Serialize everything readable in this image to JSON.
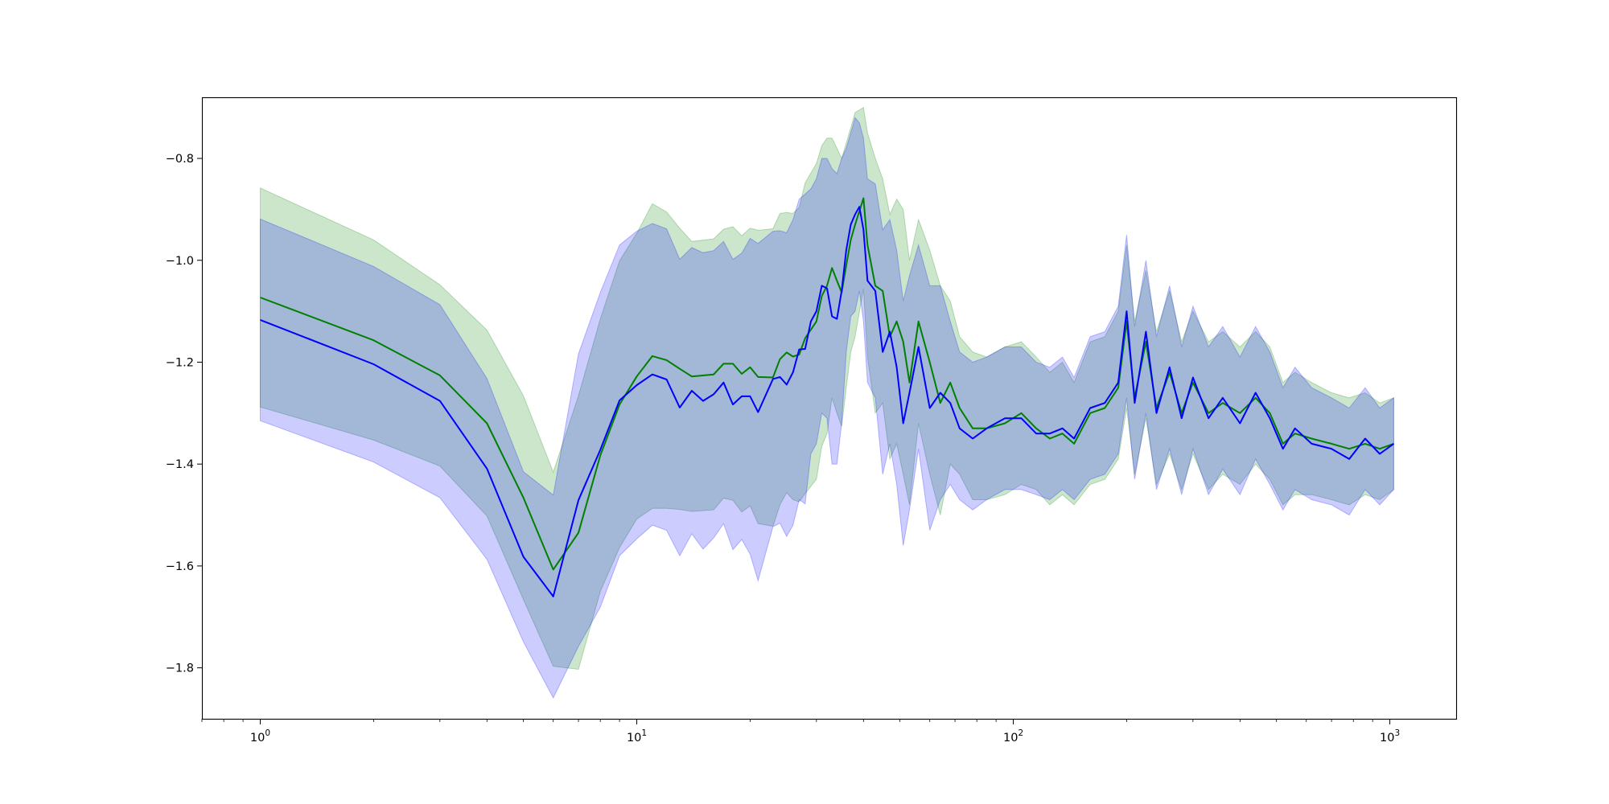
{
  "chart_data": {
    "type": "line",
    "title": "",
    "xlabel": "",
    "ylabel": "",
    "xscale": "log",
    "xlim": [
      0.7,
      1500
    ],
    "ylim": [
      -1.9,
      -0.68
    ],
    "grid": false,
    "legend": "none",
    "y_ticks": [
      {
        "value": -1.8,
        "label": "−1.8"
      },
      {
        "value": -1.6,
        "label": "−1.6"
      },
      {
        "value": -1.4,
        "label": "−1.4"
      },
      {
        "value": -1.2,
        "label": "−1.2"
      },
      {
        "value": -1.0,
        "label": "−1.0"
      },
      {
        "value": -0.8,
        "label": "−0.8"
      }
    ],
    "x_ticks": [
      {
        "value": 1,
        "base": "10",
        "exp": "0"
      },
      {
        "value": 10,
        "base": "10",
        "exp": "1"
      },
      {
        "value": 100,
        "base": "10",
        "exp": "2"
      },
      {
        "value": 1000,
        "base": "10",
        "exp": "3"
      }
    ],
    "series": [
      {
        "color": "#008000",
        "band_color": "#008000",
        "band_opacity": 0.2,
        "points": [
          [
            1,
            -1.073,
            -0.858,
            -1.288
          ],
          [
            2,
            -1.157,
            -0.96,
            -1.353
          ],
          [
            3,
            -1.226,
            -1.048,
            -1.404
          ],
          [
            4,
            -1.32,
            -1.137,
            -1.502
          ],
          [
            5,
            -1.466,
            -1.266,
            -1.666
          ],
          [
            6,
            -1.607,
            -1.416,
            -1.797
          ],
          [
            7,
            -1.535,
            -1.266,
            -1.803
          ],
          [
            8,
            -1.383,
            -1.115,
            -1.65
          ],
          [
            9,
            -1.283,
            -1.001,
            -1.564
          ],
          [
            10,
            -1.228,
            -0.947,
            -1.508
          ],
          [
            11,
            -1.188,
            -0.889,
            -1.487
          ],
          [
            12,
            -1.196,
            -0.905,
            -1.487
          ],
          [
            13,
            -1.213,
            -0.937,
            -1.489
          ],
          [
            14,
            -1.228,
            -0.963,
            -1.493
          ],
          [
            16,
            -1.224,
            -0.958,
            -1.49
          ],
          [
            17,
            -1.203,
            -0.939,
            -1.467
          ],
          [
            18,
            -1.203,
            -0.934,
            -1.471
          ],
          [
            19,
            -1.223,
            -0.952,
            -1.494
          ],
          [
            20,
            -1.21,
            -0.937,
            -1.482
          ],
          [
            21,
            -1.229,
            -0.941,
            -1.517
          ],
          [
            23,
            -1.23,
            -0.938,
            -1.522
          ],
          [
            24,
            -1.194,
            -0.908,
            -1.48
          ],
          [
            25,
            -1.181,
            -0.906,
            -1.456
          ],
          [
            26,
            -1.189,
            -0.908,
            -1.47
          ],
          [
            27,
            -1.185,
            -0.896,
            -1.474
          ],
          [
            28,
            -1.153,
            -0.848,
            -1.458
          ],
          [
            30,
            -1.12,
            -0.81,
            -1.43
          ],
          [
            31,
            -1.07,
            -0.775,
            -1.365
          ],
          [
            32,
            -1.05,
            -0.76,
            -1.34
          ],
          [
            33,
            -1.015,
            -0.76,
            -1.27
          ],
          [
            34,
            -1.04,
            -0.78,
            -1.3
          ],
          [
            35,
            -1.063,
            -0.8,
            -1.326
          ],
          [
            36,
            -1.01,
            -0.77,
            -1.25
          ],
          [
            37,
            -0.96,
            -0.74,
            -1.18
          ],
          [
            38,
            -0.93,
            -0.71,
            -1.15
          ],
          [
            40,
            -0.878,
            -0.7,
            -1.056
          ],
          [
            41,
            -0.97,
            -0.75,
            -1.19
          ],
          [
            43,
            -1.05,
            -0.8,
            -1.3
          ],
          [
            45,
            -1.06,
            -0.84,
            -1.28
          ],
          [
            47,
            -1.15,
            -0.91,
            -1.39
          ],
          [
            49,
            -1.12,
            -0.88,
            -1.36
          ],
          [
            51,
            -1.16,
            -0.9,
            -1.42
          ],
          [
            53,
            -1.24,
            -1.0,
            -1.48
          ],
          [
            56,
            -1.12,
            -0.92,
            -1.32
          ],
          [
            60,
            -1.2,
            -0.98,
            -1.42
          ],
          [
            64,
            -1.28,
            -1.05,
            -1.5
          ],
          [
            68,
            -1.24,
            -1.08,
            -1.4
          ],
          [
            72,
            -1.29,
            -1.15,
            -1.42
          ],
          [
            78,
            -1.33,
            -1.18,
            -1.47
          ],
          [
            85,
            -1.33,
            -1.19,
            -1.47
          ],
          [
            95,
            -1.32,
            -1.17,
            -1.46
          ],
          [
            105,
            -1.3,
            -1.16,
            -1.44
          ],
          [
            115,
            -1.33,
            -1.19,
            -1.45
          ],
          [
            125,
            -1.35,
            -1.22,
            -1.48
          ],
          [
            135,
            -1.34,
            -1.2,
            -1.46
          ],
          [
            145,
            -1.36,
            -1.24,
            -1.48
          ],
          [
            160,
            -1.3,
            -1.16,
            -1.44
          ],
          [
            175,
            -1.29,
            -1.15,
            -1.43
          ],
          [
            190,
            -1.25,
            -1.1,
            -1.39
          ],
          [
            200,
            -1.12,
            -0.97,
            -1.29
          ],
          [
            210,
            -1.27,
            -1.12,
            -1.42
          ],
          [
            225,
            -1.16,
            -1.02,
            -1.31
          ],
          [
            240,
            -1.29,
            -1.14,
            -1.44
          ],
          [
            260,
            -1.22,
            -1.06,
            -1.38
          ],
          [
            280,
            -1.3,
            -1.16,
            -1.45
          ],
          [
            300,
            -1.24,
            -1.1,
            -1.38
          ],
          [
            330,
            -1.3,
            -1.16,
            -1.45
          ],
          [
            360,
            -1.28,
            -1.14,
            -1.42
          ],
          [
            400,
            -1.3,
            -1.17,
            -1.44
          ],
          [
            440,
            -1.27,
            -1.14,
            -1.4
          ],
          [
            480,
            -1.3,
            -1.17,
            -1.43
          ],
          [
            520,
            -1.36,
            -1.24,
            -1.48
          ],
          [
            560,
            -1.34,
            -1.22,
            -1.46
          ],
          [
            620,
            -1.35,
            -1.24,
            -1.46
          ],
          [
            700,
            -1.36,
            -1.26,
            -1.47
          ],
          [
            780,
            -1.37,
            -1.27,
            -1.48
          ],
          [
            860,
            -1.36,
            -1.26,
            -1.46
          ],
          [
            940,
            -1.37,
            -1.28,
            -1.47
          ],
          [
            1024,
            -1.36,
            -1.27,
            -1.45
          ]
        ]
      },
      {
        "color": "#0000ff",
        "band_color": "#0000ff",
        "band_opacity": 0.2,
        "points": [
          [
            1,
            -1.117,
            -0.919,
            -1.315
          ],
          [
            2,
            -1.204,
            -1.012,
            -1.396
          ],
          [
            3,
            -1.276,
            -1.087,
            -1.466
          ],
          [
            4,
            -1.409,
            -1.232,
            -1.587
          ],
          [
            5,
            -1.582,
            -1.415,
            -1.749
          ],
          [
            6,
            -1.66,
            -1.461,
            -1.859
          ],
          [
            7,
            -1.471,
            -1.184,
            -1.758
          ],
          [
            8,
            -1.372,
            -1.063,
            -1.681
          ],
          [
            9,
            -1.275,
            -0.97,
            -1.58
          ],
          [
            10,
            -1.245,
            -0.943,
            -1.547
          ],
          [
            11,
            -1.224,
            -0.928,
            -1.52
          ],
          [
            12,
            -1.234,
            -0.938,
            -1.53
          ],
          [
            13,
            -1.289,
            -0.998,
            -1.58
          ],
          [
            14,
            -1.256,
            -0.975,
            -1.537
          ],
          [
            15,
            -1.276,
            -0.985,
            -1.567
          ],
          [
            16,
            -1.263,
            -0.981,
            -1.545
          ],
          [
            17,
            -1.24,
            -0.963,
            -1.517
          ],
          [
            18,
            -1.283,
            -0.998,
            -1.568
          ],
          [
            19,
            -1.267,
            -0.986,
            -1.548
          ],
          [
            20,
            -1.267,
            -0.957,
            -1.577
          ],
          [
            21,
            -1.298,
            -0.967,
            -1.629
          ],
          [
            23,
            -1.233,
            -0.943,
            -1.523
          ],
          [
            24,
            -1.229,
            -0.942,
            -1.516
          ],
          [
            25,
            -1.244,
            -0.946,
            -1.542
          ],
          [
            26,
            -1.22,
            -0.92,
            -1.52
          ],
          [
            27,
            -1.175,
            -0.88,
            -1.47
          ],
          [
            28,
            -1.174,
            -0.87,
            -1.478
          ],
          [
            29,
            -1.12,
            -0.86,
            -1.38
          ],
          [
            30,
            -1.1,
            -0.84,
            -1.36
          ],
          [
            31,
            -1.05,
            -0.8,
            -1.3
          ],
          [
            32,
            -1.055,
            -0.8,
            -1.31
          ],
          [
            33,
            -1.11,
            -0.82,
            -1.4
          ],
          [
            34,
            -1.115,
            -0.83,
            -1.4
          ],
          [
            35,
            -1.06,
            -0.8,
            -1.32
          ],
          [
            36,
            -0.98,
            -0.78,
            -1.18
          ],
          [
            37,
            -0.93,
            -0.75,
            -1.11
          ],
          [
            38,
            -0.91,
            -0.72,
            -1.1
          ],
          [
            39,
            -0.895,
            -0.73,
            -1.06
          ],
          [
            40,
            -0.94,
            -0.76,
            -1.12
          ],
          [
            41,
            -1.04,
            -0.84,
            -1.24
          ],
          [
            43,
            -1.06,
            -0.85,
            -1.27
          ],
          [
            45,
            -1.18,
            -0.94,
            -1.42
          ],
          [
            47,
            -1.14,
            -0.92,
            -1.36
          ],
          [
            49,
            -1.21,
            -0.98,
            -1.44
          ],
          [
            51,
            -1.32,
            -1.08,
            -1.56
          ],
          [
            53,
            -1.26,
            -1.03,
            -1.49
          ],
          [
            56,
            -1.17,
            -0.97,
            -1.37
          ],
          [
            60,
            -1.29,
            -1.05,
            -1.53
          ],
          [
            64,
            -1.26,
            -1.05,
            -1.47
          ],
          [
            68,
            -1.28,
            -1.12,
            -1.44
          ],
          [
            72,
            -1.33,
            -1.18,
            -1.47
          ],
          [
            78,
            -1.35,
            -1.2,
            -1.49
          ],
          [
            85,
            -1.33,
            -1.19,
            -1.47
          ],
          [
            95,
            -1.31,
            -1.17,
            -1.45
          ],
          [
            105,
            -1.31,
            -1.17,
            -1.45
          ],
          [
            115,
            -1.34,
            -1.2,
            -1.46
          ],
          [
            125,
            -1.34,
            -1.21,
            -1.47
          ],
          [
            135,
            -1.33,
            -1.19,
            -1.45
          ],
          [
            145,
            -1.35,
            -1.23,
            -1.47
          ],
          [
            160,
            -1.29,
            -1.15,
            -1.43
          ],
          [
            175,
            -1.28,
            -1.14,
            -1.42
          ],
          [
            190,
            -1.24,
            -1.09,
            -1.38
          ],
          [
            200,
            -1.1,
            -0.95,
            -1.27
          ],
          [
            210,
            -1.28,
            -1.13,
            -1.43
          ],
          [
            225,
            -1.14,
            -1.0,
            -1.3
          ],
          [
            240,
            -1.3,
            -1.15,
            -1.45
          ],
          [
            260,
            -1.21,
            -1.05,
            -1.37
          ],
          [
            280,
            -1.31,
            -1.17,
            -1.46
          ],
          [
            300,
            -1.23,
            -1.09,
            -1.37
          ],
          [
            330,
            -1.31,
            -1.17,
            -1.46
          ],
          [
            360,
            -1.27,
            -1.13,
            -1.41
          ],
          [
            400,
            -1.32,
            -1.19,
            -1.46
          ],
          [
            440,
            -1.26,
            -1.13,
            -1.39
          ],
          [
            480,
            -1.31,
            -1.18,
            -1.44
          ],
          [
            520,
            -1.37,
            -1.25,
            -1.49
          ],
          [
            560,
            -1.33,
            -1.21,
            -1.45
          ],
          [
            620,
            -1.36,
            -1.25,
            -1.47
          ],
          [
            700,
            -1.37,
            -1.27,
            -1.48
          ],
          [
            780,
            -1.39,
            -1.29,
            -1.5
          ],
          [
            860,
            -1.35,
            -1.25,
            -1.45
          ],
          [
            940,
            -1.38,
            -1.29,
            -1.48
          ],
          [
            1024,
            -1.36,
            -1.27,
            -1.45
          ]
        ]
      }
    ]
  }
}
